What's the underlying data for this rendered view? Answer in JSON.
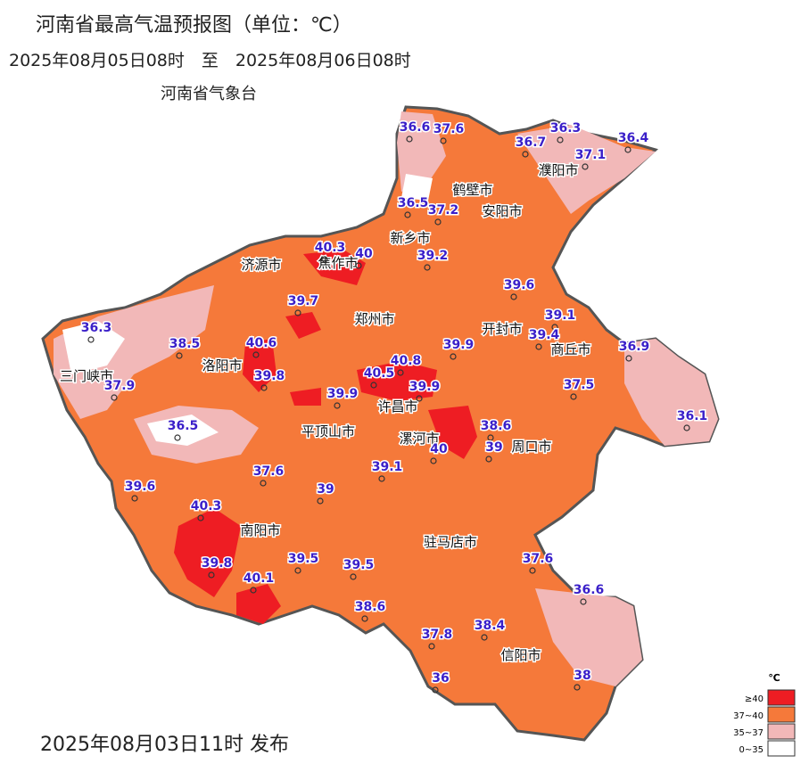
{
  "header": {
    "title": "河南省最高气温预报图（单位：℃）",
    "period": "2025年08月05日08时　至　2025年08月06日08时",
    "agency": "河南省气象台"
  },
  "footer": {
    "issued": "2025年08月03日11时 发布"
  },
  "cities": [
    "濮阳市",
    "鹤壁市",
    "安阳市",
    "新乡市",
    "济源市",
    "焦作市",
    "郑州市",
    "开封市",
    "商丘市",
    "三门峡市",
    "洛阳市",
    "许昌市",
    "平顶山市",
    "漯河市",
    "周口市",
    "南阳市",
    "驻马店市",
    "信阳市"
  ],
  "stations": [
    36.6,
    37.6,
    36.3,
    36.4,
    36.7,
    37.1,
    36.5,
    37.2,
    40.3,
    40,
    39.2,
    39.6,
    39.7,
    39.1,
    36.3,
    38.5,
    40.6,
    39.4,
    39.9,
    36.9,
    40.8,
    40.5,
    39.8,
    39.9,
    37.9,
    37.5,
    39.9,
    36.1,
    38.6,
    36.5,
    40,
    39,
    37.6,
    39.1,
    39.6,
    39,
    40.3,
    39.8,
    39.5,
    39.5,
    37.6,
    40.1,
    36.6,
    38.6,
    38.4,
    37.8,
    36,
    38
  ],
  "legend": {
    "unit": "℃",
    "items": [
      {
        "label": "≥40",
        "color": "#ee1d23"
      },
      {
        "label": "37~40",
        "color": "#f5793a"
      },
      {
        "label": "35~37",
        "color": "#f2b8b8"
      },
      {
        "label": "0~35",
        "color": "#ffffff"
      }
    ]
  }
}
